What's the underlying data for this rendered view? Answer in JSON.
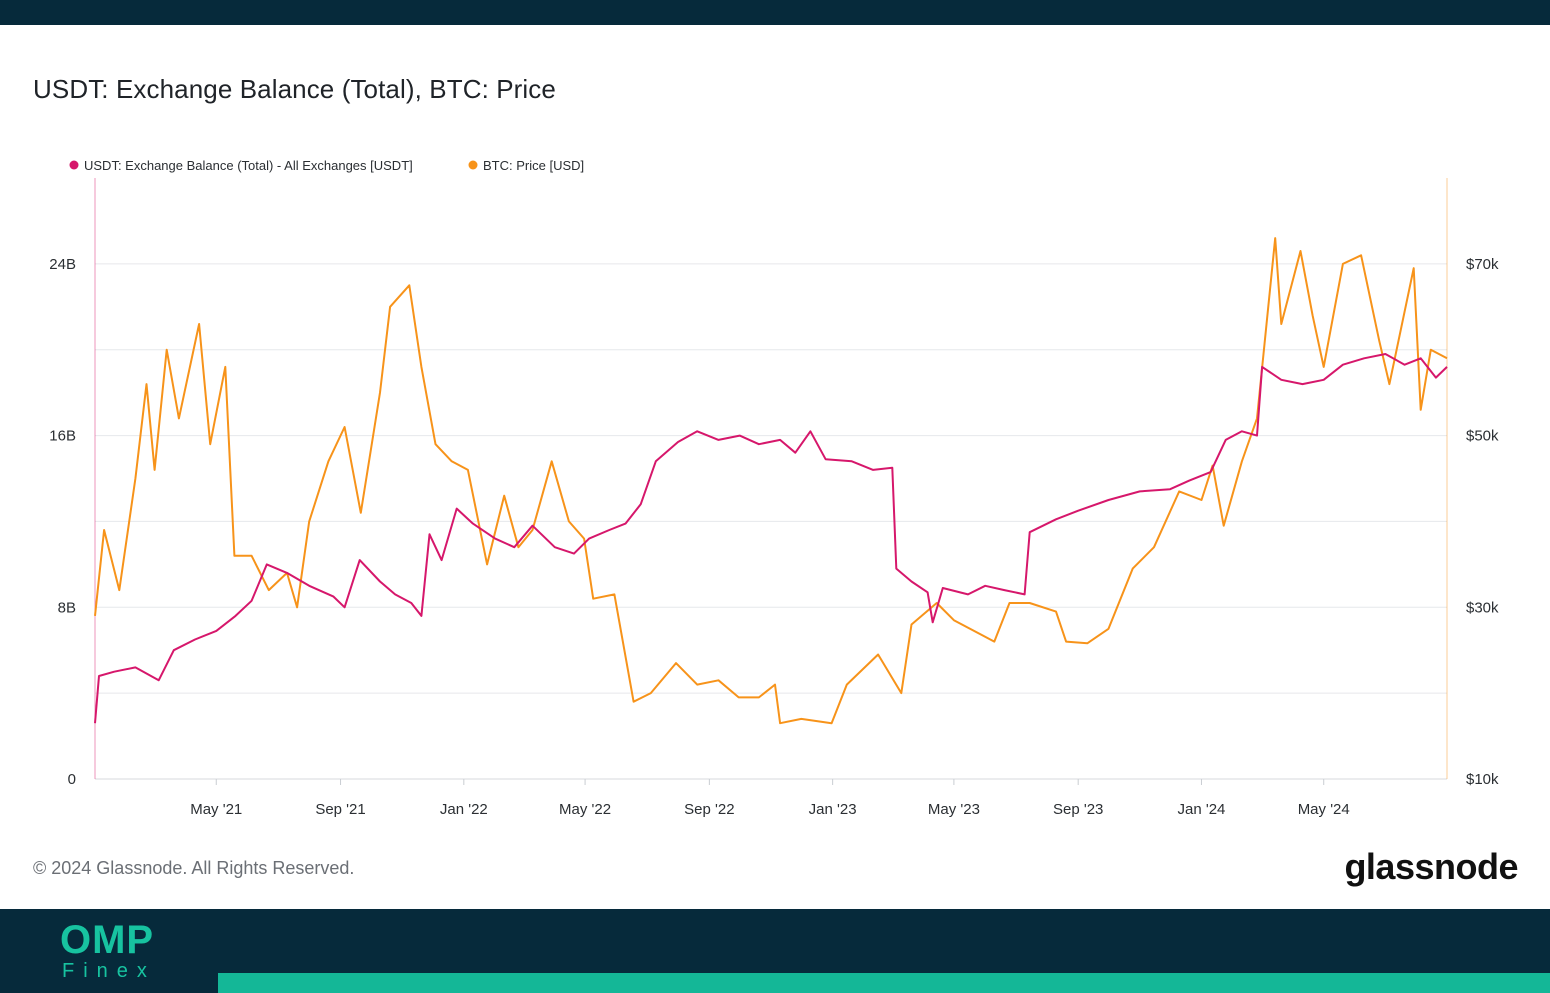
{
  "title": "USDT: Exchange Balance (Total), BTC: Price",
  "copyright": "© 2024 Glassnode. All Rights Reserved.",
  "brand": "glassnode",
  "footer_logo": {
    "main": "OMP",
    "sub": "Finex"
  },
  "colors": {
    "usdt": "#d6176b",
    "btc": "#f7931a",
    "header_bg": "#062a3b",
    "accent": "#14b797"
  },
  "chart_data": {
    "type": "line",
    "title": "USDT: Exchange Balance (Total), BTC: Price",
    "x_range": [
      "2021-01-01",
      "2024-08-31"
    ],
    "x_ticks": [
      "May '21",
      "Sep '21",
      "Jan '22",
      "May '22",
      "Sep '22",
      "Jan '23",
      "May '23",
      "Sep '23",
      "Jan '24",
      "May '24"
    ],
    "y_left_ticks": [
      "0",
      "8B",
      "16B",
      "24B"
    ],
    "y_left_range": [
      0,
      28
    ],
    "y_right_ticks": [
      "$10k",
      "$30k",
      "$50k",
      "$70k"
    ],
    "y_right_range": [
      10000,
      80000
    ],
    "grid": true,
    "legend_position": "top-left",
    "series": [
      {
        "name": "USDT: Exchange Balance (Total) - All Exchanges [USDT]",
        "axis": "left",
        "unit": "B",
        "points": [
          [
            "2021-01-01",
            2.6
          ],
          [
            "2021-01-05",
            4.8
          ],
          [
            "2021-01-20",
            5.0
          ],
          [
            "2021-02-10",
            5.2
          ],
          [
            "2021-03-05",
            4.6
          ],
          [
            "2021-03-20",
            6.0
          ],
          [
            "2021-04-10",
            6.5
          ],
          [
            "2021-05-01",
            6.9
          ],
          [
            "2021-05-20",
            7.6
          ],
          [
            "2021-06-05",
            8.3
          ],
          [
            "2021-06-20",
            10.0
          ],
          [
            "2021-07-10",
            9.6
          ],
          [
            "2021-08-01",
            9.0
          ],
          [
            "2021-08-25",
            8.5
          ],
          [
            "2021-09-05",
            8.0
          ],
          [
            "2021-09-20",
            10.2
          ],
          [
            "2021-10-10",
            9.2
          ],
          [
            "2021-10-25",
            8.6
          ],
          [
            "2021-11-10",
            8.2
          ],
          [
            "2021-11-20",
            7.6
          ],
          [
            "2021-11-28",
            11.4
          ],
          [
            "2021-12-10",
            10.2
          ],
          [
            "2021-12-25",
            12.6
          ],
          [
            "2022-01-10",
            11.9
          ],
          [
            "2022-02-01",
            11.2
          ],
          [
            "2022-02-20",
            10.8
          ],
          [
            "2022-03-10",
            11.8
          ],
          [
            "2022-04-01",
            10.8
          ],
          [
            "2022-04-20",
            10.5
          ],
          [
            "2022-05-05",
            11.2
          ],
          [
            "2022-05-25",
            11.6
          ],
          [
            "2022-06-10",
            11.9
          ],
          [
            "2022-06-25",
            12.8
          ],
          [
            "2022-07-10",
            14.8
          ],
          [
            "2022-08-01",
            15.7
          ],
          [
            "2022-08-20",
            16.2
          ],
          [
            "2022-09-10",
            15.8
          ],
          [
            "2022-10-01",
            16.0
          ],
          [
            "2022-10-20",
            15.6
          ],
          [
            "2022-11-10",
            15.8
          ],
          [
            "2022-11-25",
            15.2
          ],
          [
            "2022-12-10",
            16.2
          ],
          [
            "2022-12-25",
            14.9
          ],
          [
            "2023-01-20",
            14.8
          ],
          [
            "2023-02-10",
            14.4
          ],
          [
            "2023-03-01",
            14.5
          ],
          [
            "2023-03-05",
            9.8
          ],
          [
            "2023-03-20",
            9.2
          ],
          [
            "2023-04-05",
            8.7
          ],
          [
            "2023-04-10",
            7.3
          ],
          [
            "2023-04-20",
            8.9
          ],
          [
            "2023-05-15",
            8.6
          ],
          [
            "2023-06-01",
            9.0
          ],
          [
            "2023-06-20",
            8.8
          ],
          [
            "2023-07-10",
            8.6
          ],
          [
            "2023-07-15",
            11.5
          ],
          [
            "2023-08-10",
            12.1
          ],
          [
            "2023-09-01",
            12.5
          ],
          [
            "2023-10-01",
            13.0
          ],
          [
            "2023-11-01",
            13.4
          ],
          [
            "2023-12-01",
            13.5
          ],
          [
            "2023-12-20",
            13.9
          ],
          [
            "2024-01-10",
            14.3
          ],
          [
            "2024-01-25",
            15.8
          ],
          [
            "2024-02-10",
            16.2
          ],
          [
            "2024-02-25",
            16.0
          ],
          [
            "2024-03-01",
            19.2
          ],
          [
            "2024-03-20",
            18.6
          ],
          [
            "2024-04-10",
            18.4
          ],
          [
            "2024-05-01",
            18.6
          ],
          [
            "2024-05-20",
            19.3
          ],
          [
            "2024-06-10",
            19.6
          ],
          [
            "2024-07-01",
            19.8
          ],
          [
            "2024-07-20",
            19.3
          ],
          [
            "2024-08-05",
            19.6
          ],
          [
            "2024-08-20",
            18.7
          ],
          [
            "2024-08-31",
            19.2
          ]
        ]
      },
      {
        "name": "BTC: Price [USD]",
        "axis": "right",
        "unit": "USD",
        "points": [
          [
            "2021-01-01",
            29000
          ],
          [
            "2021-01-10",
            39000
          ],
          [
            "2021-01-25",
            32000
          ],
          [
            "2021-02-10",
            45000
          ],
          [
            "2021-02-21",
            56000
          ],
          [
            "2021-03-01",
            46000
          ],
          [
            "2021-03-13",
            60000
          ],
          [
            "2021-03-25",
            52000
          ],
          [
            "2021-04-14",
            63000
          ],
          [
            "2021-04-25",
            49000
          ],
          [
            "2021-05-10",
            58000
          ],
          [
            "2021-05-19",
            36000
          ],
          [
            "2021-06-05",
            36000
          ],
          [
            "2021-06-22",
            32000
          ],
          [
            "2021-07-10",
            34000
          ],
          [
            "2021-07-20",
            30000
          ],
          [
            "2021-08-01",
            40000
          ],
          [
            "2021-08-20",
            47000
          ],
          [
            "2021-09-05",
            51000
          ],
          [
            "2021-09-21",
            41000
          ],
          [
            "2021-10-10",
            55000
          ],
          [
            "2021-10-20",
            65000
          ],
          [
            "2021-11-08",
            67500
          ],
          [
            "2021-11-20",
            58000
          ],
          [
            "2021-12-04",
            49000
          ],
          [
            "2021-12-20",
            47000
          ],
          [
            "2022-01-05",
            46000
          ],
          [
            "2022-01-24",
            35000
          ],
          [
            "2022-02-10",
            43000
          ],
          [
            "2022-02-24",
            37000
          ],
          [
            "2022-03-10",
            39000
          ],
          [
            "2022-03-29",
            47000
          ],
          [
            "2022-04-15",
            40000
          ],
          [
            "2022-04-30",
            38000
          ],
          [
            "2022-05-09",
            31000
          ],
          [
            "2022-05-30",
            31500
          ],
          [
            "2022-06-18",
            19000
          ],
          [
            "2022-07-05",
            20000
          ],
          [
            "2022-07-30",
            23500
          ],
          [
            "2022-08-20",
            21000
          ],
          [
            "2022-09-10",
            21500
          ],
          [
            "2022-09-30",
            19500
          ],
          [
            "2022-10-20",
            19500
          ],
          [
            "2022-11-05",
            21000
          ],
          [
            "2022-11-10",
            16500
          ],
          [
            "2022-12-01",
            17000
          ],
          [
            "2022-12-31",
            16500
          ],
          [
            "2023-01-15",
            21000
          ],
          [
            "2023-02-15",
            24500
          ],
          [
            "2023-03-10",
            20000
          ],
          [
            "2023-03-20",
            28000
          ],
          [
            "2023-04-14",
            30500
          ],
          [
            "2023-05-01",
            28500
          ],
          [
            "2023-06-10",
            26000
          ],
          [
            "2023-06-25",
            30500
          ],
          [
            "2023-07-15",
            30500
          ],
          [
            "2023-08-10",
            29500
          ],
          [
            "2023-08-20",
            26000
          ],
          [
            "2023-09-10",
            25800
          ],
          [
            "2023-10-01",
            27500
          ],
          [
            "2023-10-25",
            34500
          ],
          [
            "2023-11-15",
            37000
          ],
          [
            "2023-12-10",
            43500
          ],
          [
            "2024-01-01",
            42500
          ],
          [
            "2024-01-12",
            46500
          ],
          [
            "2024-01-23",
            39500
          ],
          [
            "2024-02-10",
            47000
          ],
          [
            "2024-02-25",
            52000
          ],
          [
            "2024-03-14",
            73000
          ],
          [
            "2024-03-20",
            63000
          ],
          [
            "2024-04-08",
            71500
          ],
          [
            "2024-04-20",
            64000
          ],
          [
            "2024-05-01",
            58000
          ],
          [
            "2024-05-20",
            70000
          ],
          [
            "2024-06-07",
            71000
          ],
          [
            "2024-06-25",
            61000
          ],
          [
            "2024-07-05",
            56000
          ],
          [
            "2024-07-29",
            69500
          ],
          [
            "2024-08-05",
            53000
          ],
          [
            "2024-08-15",
            60000
          ],
          [
            "2024-08-31",
            59000
          ]
        ]
      }
    ]
  }
}
